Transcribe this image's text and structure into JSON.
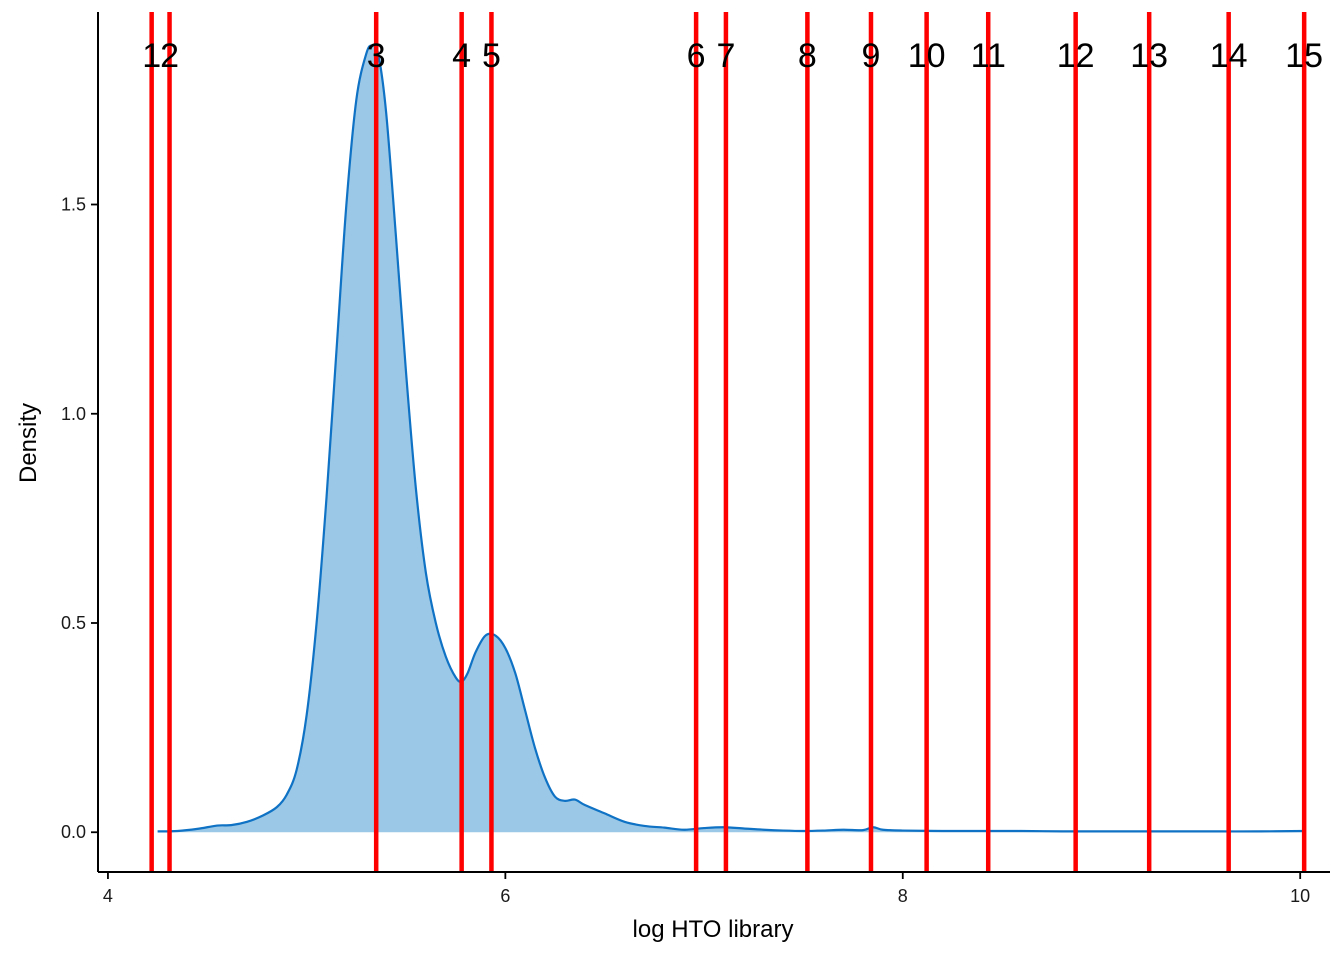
{
  "chart_data": {
    "type": "area",
    "xlabel": "log HTO library",
    "ylabel": "Density",
    "xlim": [
      3.95,
      10.15
    ],
    "ylim": [
      -0.095,
      1.96
    ],
    "x_ticks": [
      4,
      6,
      8,
      10
    ],
    "x_tick_labels": [
      "4",
      "6",
      "8",
      "10"
    ],
    "y_ticks": [
      0.0,
      0.5,
      1.0,
      1.5
    ],
    "y_tick_labels": [
      "0.0",
      "0.5",
      "1.0",
      "1.5"
    ],
    "grid": false,
    "colors": {
      "fill": "#9ac8e6",
      "line": "#0f72c4",
      "vline": "#ff0000"
    },
    "density": {
      "x": [
        4.25,
        4.35,
        4.45,
        4.55,
        4.62,
        4.7,
        4.78,
        4.85,
        4.9,
        4.95,
        5.0,
        5.05,
        5.1,
        5.15,
        5.2,
        5.25,
        5.3,
        5.33,
        5.36,
        5.4,
        5.45,
        5.5,
        5.55,
        5.6,
        5.65,
        5.7,
        5.75,
        5.78,
        5.81,
        5.85,
        5.9,
        5.95,
        6.0,
        6.05,
        6.1,
        6.15,
        6.2,
        6.25,
        6.3,
        6.35,
        6.4,
        6.5,
        6.6,
        6.7,
        6.8,
        6.9,
        7.0,
        7.1,
        7.2,
        7.3,
        7.4,
        7.5,
        7.6,
        7.7,
        7.8,
        7.85,
        7.9,
        8.0,
        8.2,
        8.4,
        8.6,
        8.8,
        9.0,
        9.2,
        9.4,
        9.6,
        9.8,
        10.02
      ],
      "y": [
        0.002,
        0.003,
        0.008,
        0.016,
        0.017,
        0.025,
        0.04,
        0.06,
        0.09,
        0.15,
        0.28,
        0.5,
        0.8,
        1.15,
        1.5,
        1.75,
        1.86,
        1.88,
        1.86,
        1.72,
        1.42,
        1.1,
        0.82,
        0.62,
        0.5,
        0.42,
        0.37,
        0.36,
        0.38,
        0.43,
        0.47,
        0.47,
        0.44,
        0.38,
        0.29,
        0.2,
        0.13,
        0.085,
        0.075,
        0.078,
        0.065,
        0.045,
        0.025,
        0.015,
        0.011,
        0.006,
        0.01,
        0.012,
        0.009,
        0.006,
        0.004,
        0.003,
        0.004,
        0.006,
        0.005,
        0.012,
        0.006,
        0.004,
        0.003,
        0.003,
        0.003,
        0.002,
        0.002,
        0.002,
        0.002,
        0.002,
        0.002,
        0.003
      ]
    },
    "vlines": [
      {
        "label": "1",
        "x": 4.22
      },
      {
        "label": "2",
        "x": 4.31
      },
      {
        "label": "3",
        "x": 5.35
      },
      {
        "label": "4",
        "x": 5.78
      },
      {
        "label": "5",
        "x": 5.93
      },
      {
        "label": "6",
        "x": 6.96
      },
      {
        "label": "7",
        "x": 7.11
      },
      {
        "label": "8",
        "x": 7.52
      },
      {
        "label": "9",
        "x": 7.84
      },
      {
        "label": "10",
        "x": 8.12
      },
      {
        "label": "11",
        "x": 8.43
      },
      {
        "label": "12",
        "x": 8.87
      },
      {
        "label": "13",
        "x": 9.24
      },
      {
        "label": "14",
        "x": 9.64
      },
      {
        "label": "15",
        "x": 10.02
      }
    ]
  }
}
